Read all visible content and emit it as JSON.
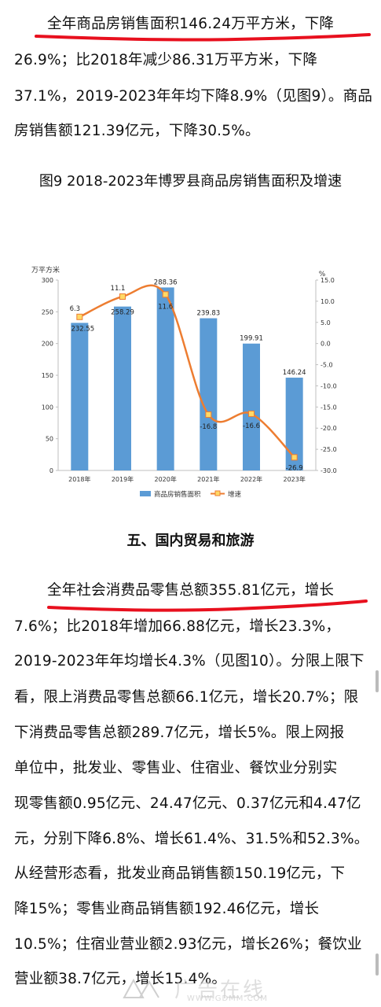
{
  "paragraph1": {
    "lines": [
      "全年商品房销售面积146.24万平方米，下降",
      "26.9%；比2018年减少86.31万平方米，下降",
      "37.1%，2019-2023年年均下降8.9%（见图9）。商品",
      "房销售额121.39亿元，下降30.5%。"
    ]
  },
  "figure9": {
    "caption": "图9 2018-2023年博罗县商品房销售面积及增速"
  },
  "chart_data": {
    "type": "bar",
    "categories": [
      "2018年",
      "2019年",
      "2020年",
      "2021年",
      "2022年",
      "2023年"
    ],
    "series": [
      {
        "name": "商品房销售面积",
        "type": "bar",
        "axis": "left",
        "values": [
          232.55,
          258.29,
          288.36,
          239.83,
          199.91,
          146.24
        ],
        "labels": [
          "232.55",
          "258.29",
          "288.36",
          "239.83",
          "199.91",
          "146.24"
        ]
      },
      {
        "name": "增速",
        "type": "line",
        "axis": "right",
        "values": [
          6.3,
          11.1,
          11.6,
          -16.8,
          -16.6,
          -26.9
        ],
        "labels": [
          "6.3",
          "11.1",
          "11.6",
          "-16.8",
          "-16.6",
          "-26.9"
        ]
      }
    ],
    "left_axis": {
      "unit": "万平方米",
      "ylim": [
        0,
        300
      ],
      "ticks": [
        "0",
        "50",
        "100",
        "150",
        "200",
        "250",
        "300"
      ]
    },
    "right_axis": {
      "unit": "%",
      "ylim": [
        -30,
        15
      ],
      "ticks": [
        "15.0",
        "10.0",
        "5.0",
        "0.0",
        "-5.0",
        "-10.0",
        "-15.0",
        "-20.0",
        "-25.0",
        "-30.0"
      ]
    },
    "legend_position": "bottom",
    "grid": false,
    "colors": {
      "bar": "#5b9bd5",
      "line": "#ed7d31",
      "marker_fill": "#ffd966"
    }
  },
  "section5": {
    "title": "五、国内贸易和旅游"
  },
  "paragraph2": {
    "lines": [
      "全年社会消费品零售总额355.81亿元，增长",
      "7.6%；比2018年增加66.88亿元，增长23.3%，",
      "2019-2023年年均增长4.3%（见图10）。分限上限下",
      "看，限上消费品零售总额66.1亿元，增长20.7%；限",
      "下消费品零售总额289.7亿元，增长5%。限上网报",
      "单位中，批发业、零售业、住宿业、餐饮业分别实",
      "现零售额0.95亿元、24.47亿元、0.37亿元和4.47亿",
      "元，分别下降6.8%、增长61.4%、31.5%和52.3%。",
      "从经营形态看，批发业商品销售额150.19亿元，下",
      "降15%；零售业商品销售额192.46亿元，增长",
      "10.5%；住宿业营业额2.93亿元，增长26%；餐饮业",
      "营业额38.7亿元，增长15.4%。"
    ]
  },
  "watermark": {
    "text": "广告在线",
    "url": "WWW.GDMM.COM"
  },
  "colors": {
    "underline": "#e8101e",
    "text": "#111111"
  }
}
